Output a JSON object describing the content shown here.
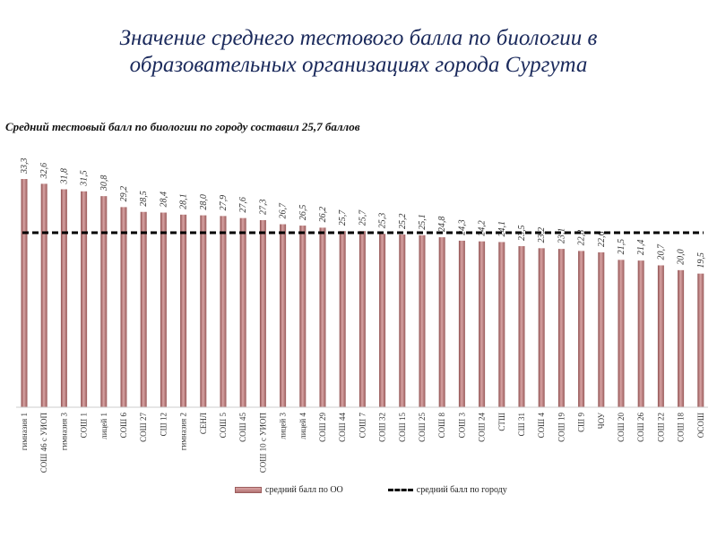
{
  "header": {
    "title_line1": "Значение среднего тестового балла по биологии в",
    "title_line2": "образовательных организациях города Сургута"
  },
  "chart_data": {
    "type": "bar",
    "title": "Средний тестовый балл по биологии по городу составил 25,7 баллов",
    "xlabel": "",
    "ylabel": "",
    "ylim": [
      0,
      34
    ],
    "grid": false,
    "legend_position": "bottom",
    "categories": [
      "гимназия 1",
      "СОШ 46 с УИОП",
      "гимназия 3",
      "СОШ 1",
      "лицей 1",
      "СОШ 6",
      "СОШ 27",
      "СШ 12",
      "гимназия 2",
      "СЕНЛ",
      "СОШ 5",
      "СОШ 45",
      "СОШ 10 с УИОП",
      "лицей 3",
      "лицей 4",
      "СОШ 29",
      "СОШ 44",
      "СОШ 7",
      "СОШ 32",
      "СОШ 15",
      "СОШ 25",
      "СОШ 8",
      "СОШ 3",
      "СОШ 24",
      "СТШ",
      "СШ 31",
      "СОШ 4",
      "СОШ 19",
      "СШ 9",
      "ЧОУ",
      "СОШ 20",
      "СОШ 26",
      "СОШ 22",
      "СОШ 18",
      "ОСОШ"
    ],
    "series": [
      {
        "name": "средний балл по ОО",
        "type": "bar",
        "color": "#b97a7a",
        "values": [
          33.3,
          32.6,
          31.8,
          31.5,
          30.8,
          29.2,
          28.5,
          28.4,
          28.1,
          28.0,
          27.9,
          27.6,
          27.3,
          26.7,
          26.5,
          26.2,
          25.7,
          25.7,
          25.3,
          25.2,
          25.1,
          24.8,
          24.3,
          24.2,
          24.1,
          23.5,
          23.2,
          23.1,
          22.8,
          22.6,
          21.5,
          21.4,
          20.7,
          20.0,
          19.5
        ],
        "labels": [
          "33,3",
          "32,6",
          "31,8",
          "31,5",
          "30,8",
          "29,2",
          "28,5",
          "28,4",
          "28,1",
          "28,0",
          "27,9",
          "27,6",
          "27,3",
          "26,7",
          "26,5",
          "26,2",
          "25,7",
          "25,7",
          "25,3",
          "25,2",
          "25,1",
          "24,8",
          "24,3",
          "24,2",
          "24,1",
          "23,5",
          "23,2",
          "23,1",
          "22,8",
          "22,6",
          "21,5",
          "21,4",
          "20,7",
          "20,0",
          "19,5"
        ]
      },
      {
        "name": "средний балл по городу",
        "type": "line",
        "style": "dashed",
        "color": "#000000",
        "value": 25.7
      }
    ]
  },
  "legend": {
    "bar_label": "средний балл по ОО",
    "line_label": "средний балл по городу"
  }
}
